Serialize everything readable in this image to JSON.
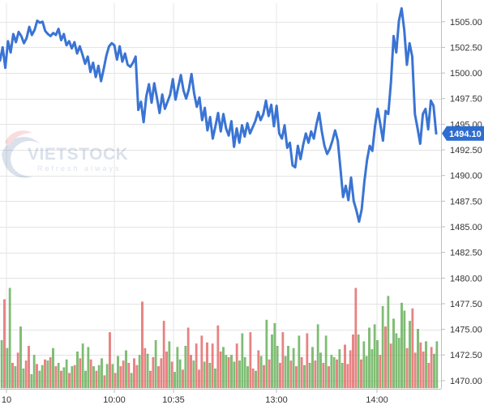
{
  "chart_data": {
    "type": "line",
    "title": "",
    "xlabel": "",
    "ylabel": "",
    "grid": true,
    "x_tick_labels": [
      "10",
      "10:00",
      "10:35",
      "13:00",
      "14:00"
    ],
    "y_ticks": [
      1505.0,
      1502.5,
      1500.0,
      1497.5,
      1495.0,
      1492.5,
      1490.0,
      1487.5,
      1485.0,
      1482.5,
      1480.0,
      1477.5,
      1475.0,
      1472.5,
      1470.0
    ],
    "y_tick_labels": [
      "1505.00",
      "1502.50",
      "1500.00",
      "1497.50",
      "1495.00",
      "1492.50",
      "1490.00",
      "1487.50",
      "1485.00",
      "1482.50",
      "1480.00",
      "1477.50",
      "1475.00",
      "1472.50",
      "1470.00"
    ],
    "ylim": [
      1469.2,
      1506.8
    ],
    "last_price": "1494.10",
    "price_series": [
      1501.2,
      1502.5,
      1500.5,
      1503.1,
      1502.0,
      1503.8,
      1503.0,
      1504.0,
      1503.6,
      1502.9,
      1503.4,
      1504.5,
      1503.7,
      1504.2,
      1505.1,
      1504.9,
      1505.0,
      1504.1,
      1503.8,
      1503.6,
      1503.9,
      1503.7,
      1504.3,
      1503.2,
      1503.8,
      1502.7,
      1503.1,
      1502.4,
      1503.0,
      1501.9,
      1502.6,
      1501.8,
      1500.9,
      1501.6,
      1500.1,
      1501.0,
      1499.6,
      1500.7,
      1499.2,
      1500.4,
      1501.7,
      1502.6,
      1502.9,
      1502.7,
      1501.3,
      1502.6,
      1501.1,
      1501.9,
      1500.8,
      1500.6,
      1501.0,
      1501.6,
      1496.4,
      1497.2,
      1495.2,
      1497.7,
      1498.9,
      1497.1,
      1499.0,
      1497.6,
      1496.1,
      1497.9,
      1496.5,
      1497.2,
      1497.9,
      1499.4,
      1497.4,
      1498.6,
      1499.8,
      1498.3,
      1497.5,
      1498.4,
      1499.9,
      1498.0,
      1496.7,
      1497.6,
      1495.4,
      1496.6,
      1494.4,
      1495.7,
      1493.6,
      1494.8,
      1496.1,
      1494.3,
      1496.0,
      1494.6,
      1493.9,
      1495.3,
      1492.8,
      1494.6,
      1493.2,
      1494.9,
      1493.8,
      1495.1,
      1494.1,
      1494.7,
      1495.3,
      1496.2,
      1495.4,
      1496.0,
      1497.3,
      1495.8,
      1496.9,
      1494.8,
      1496.8,
      1494.1,
      1493.6,
      1494.9,
      1492.7,
      1493.2,
      1491.0,
      1490.8,
      1492.9,
      1491.6,
      1493.0,
      1494.1,
      1493.2,
      1494.3,
      1493.6,
      1495.0,
      1496.1,
      1494.3,
      1492.9,
      1492.1,
      1492.6,
      1493.4,
      1494.4,
      1493.4,
      1490.7,
      1487.9,
      1489.0,
      1487.6,
      1489.8,
      1487.5,
      1486.6,
      1485.5,
      1486.7,
      1489.4,
      1491.5,
      1492.9,
      1492.4,
      1494.8,
      1496.5,
      1495.0,
      1493.4,
      1496.3,
      1496.0,
      1499.1,
      1503.6,
      1502.0,
      1505.1,
      1506.3,
      1504.2,
      1500.8,
      1502.9,
      1501.6,
      1496.0,
      1494.6,
      1493.1,
      1496.0,
      1496.5,
      1494.5,
      1497.3,
      1496.8,
      1494.1
    ],
    "volume_series": {
      "colors": {
        "up": "#67b05a",
        "down": "#e36a6a",
        "line": "#3a74d4"
      },
      "bars": [
        {
          "v": 0.42,
          "c": "up"
        },
        {
          "v": 0.78,
          "c": "down"
        },
        {
          "v": 0.35,
          "c": "up"
        },
        {
          "v": 0.88,
          "c": "up"
        },
        {
          "v": 0.22,
          "c": "down"
        },
        {
          "v": 0.19,
          "c": "up"
        },
        {
          "v": 0.31,
          "c": "down"
        },
        {
          "v": 0.54,
          "c": "up"
        },
        {
          "v": 0.17,
          "c": "up"
        },
        {
          "v": 0.24,
          "c": "down"
        },
        {
          "v": 0.37,
          "c": "down"
        },
        {
          "v": 0.12,
          "c": "up"
        },
        {
          "v": 0.29,
          "c": "up"
        },
        {
          "v": 0.21,
          "c": "down"
        },
        {
          "v": 0.15,
          "c": "up"
        },
        {
          "v": 0.2,
          "c": "up"
        },
        {
          "v": 0.25,
          "c": "down"
        },
        {
          "v": 0.24,
          "c": "up"
        },
        {
          "v": 0.27,
          "c": "down"
        },
        {
          "v": 0.35,
          "c": "up"
        },
        {
          "v": 0.19,
          "c": "down"
        },
        {
          "v": 0.22,
          "c": "up"
        },
        {
          "v": 0.15,
          "c": "down"
        },
        {
          "v": 0.18,
          "c": "up"
        },
        {
          "v": 0.25,
          "c": "up"
        },
        {
          "v": 0.13,
          "c": "down"
        },
        {
          "v": 0.19,
          "c": "up"
        },
        {
          "v": 0.2,
          "c": "down"
        },
        {
          "v": 0.32,
          "c": "up"
        },
        {
          "v": 0.26,
          "c": "down"
        },
        {
          "v": 0.39,
          "c": "up"
        },
        {
          "v": 0.15,
          "c": "up"
        },
        {
          "v": 0.36,
          "c": "up"
        },
        {
          "v": 0.25,
          "c": "down"
        },
        {
          "v": 0.19,
          "c": "up"
        },
        {
          "v": 0.15,
          "c": "down"
        },
        {
          "v": 0.2,
          "c": "up"
        },
        {
          "v": 0.26,
          "c": "up"
        },
        {
          "v": 0.11,
          "c": "down"
        },
        {
          "v": 0.21,
          "c": "up"
        },
        {
          "v": 0.49,
          "c": "down"
        },
        {
          "v": 0.21,
          "c": "up"
        },
        {
          "v": 0.13,
          "c": "down"
        },
        {
          "v": 0.28,
          "c": "up"
        },
        {
          "v": 0.19,
          "c": "down"
        },
        {
          "v": 0.24,
          "c": "down"
        },
        {
          "v": 0.33,
          "c": "up"
        },
        {
          "v": 0.22,
          "c": "down"
        },
        {
          "v": 0.13,
          "c": "up"
        },
        {
          "v": 0.26,
          "c": "down"
        },
        {
          "v": 0.2,
          "c": "down"
        },
        {
          "v": 0.29,
          "c": "up"
        },
        {
          "v": 0.76,
          "c": "down"
        },
        {
          "v": 0.35,
          "c": "down"
        },
        {
          "v": 0.3,
          "c": "up"
        },
        {
          "v": 0.15,
          "c": "down"
        },
        {
          "v": 0.27,
          "c": "down"
        },
        {
          "v": 0.42,
          "c": "up"
        },
        {
          "v": 0.19,
          "c": "down"
        },
        {
          "v": 0.26,
          "c": "down"
        },
        {
          "v": 0.59,
          "c": "down"
        },
        {
          "v": 0.32,
          "c": "down"
        },
        {
          "v": 0.41,
          "c": "up"
        },
        {
          "v": 0.23,
          "c": "down"
        },
        {
          "v": 0.14,
          "c": "up"
        },
        {
          "v": 0.36,
          "c": "up"
        },
        {
          "v": 0.25,
          "c": "up"
        },
        {
          "v": 0.16,
          "c": "down"
        },
        {
          "v": 0.37,
          "c": "up"
        },
        {
          "v": 0.53,
          "c": "down"
        },
        {
          "v": 0.29,
          "c": "down"
        },
        {
          "v": 0.24,
          "c": "up"
        },
        {
          "v": 0.39,
          "c": "down"
        },
        {
          "v": 0.16,
          "c": "down"
        },
        {
          "v": 0.46,
          "c": "down"
        },
        {
          "v": 0.23,
          "c": "up"
        },
        {
          "v": 0.4,
          "c": "down"
        },
        {
          "v": 0.22,
          "c": "up"
        },
        {
          "v": 0.39,
          "c": "down"
        },
        {
          "v": 0.17,
          "c": "up"
        },
        {
          "v": 0.55,
          "c": "down"
        },
        {
          "v": 0.32,
          "c": "down"
        },
        {
          "v": 0.36,
          "c": "up"
        },
        {
          "v": 0.29,
          "c": "up"
        },
        {
          "v": 0.27,
          "c": "down"
        },
        {
          "v": 0.29,
          "c": "up"
        },
        {
          "v": 0.23,
          "c": "up"
        },
        {
          "v": 0.39,
          "c": "down"
        },
        {
          "v": 0.24,
          "c": "up"
        },
        {
          "v": 0.48,
          "c": "up"
        },
        {
          "v": 0.27,
          "c": "up"
        },
        {
          "v": 0.19,
          "c": "up"
        },
        {
          "v": 0.49,
          "c": "down"
        },
        {
          "v": 0.17,
          "c": "down"
        },
        {
          "v": 0.15,
          "c": "up"
        },
        {
          "v": 0.33,
          "c": "down"
        },
        {
          "v": 0.28,
          "c": "up"
        },
        {
          "v": 0.2,
          "c": "down"
        },
        {
          "v": 0.6,
          "c": "up"
        },
        {
          "v": 0.25,
          "c": "down"
        },
        {
          "v": 0.47,
          "c": "up"
        },
        {
          "v": 0.57,
          "c": "up"
        },
        {
          "v": 0.37,
          "c": "up"
        },
        {
          "v": 0.22,
          "c": "down"
        },
        {
          "v": 0.49,
          "c": "down"
        },
        {
          "v": 0.28,
          "c": "up"
        },
        {
          "v": 0.37,
          "c": "up"
        },
        {
          "v": 0.24,
          "c": "down"
        },
        {
          "v": 0.35,
          "c": "up"
        },
        {
          "v": 0.19,
          "c": "down"
        },
        {
          "v": 0.46,
          "c": "up"
        },
        {
          "v": 0.27,
          "c": "down"
        },
        {
          "v": 0.2,
          "c": "up"
        },
        {
          "v": 0.48,
          "c": "down"
        },
        {
          "v": 0.22,
          "c": "up"
        },
        {
          "v": 0.36,
          "c": "up"
        },
        {
          "v": 0.24,
          "c": "down"
        },
        {
          "v": 0.56,
          "c": "up"
        },
        {
          "v": 0.31,
          "c": "up"
        },
        {
          "v": 0.22,
          "c": "down"
        },
        {
          "v": 0.46,
          "c": "up"
        },
        {
          "v": 0.19,
          "c": "down"
        },
        {
          "v": 0.29,
          "c": "up"
        },
        {
          "v": 0.27,
          "c": "up"
        },
        {
          "v": 0.25,
          "c": "down"
        },
        {
          "v": 0.34,
          "c": "up"
        },
        {
          "v": 0.22,
          "c": "up"
        },
        {
          "v": 0.38,
          "c": "down"
        },
        {
          "v": 0.21,
          "c": "down"
        },
        {
          "v": 0.33,
          "c": "down"
        },
        {
          "v": 0.47,
          "c": "down"
        },
        {
          "v": 0.88,
          "c": "down"
        },
        {
          "v": 0.47,
          "c": "up"
        },
        {
          "v": 0.25,
          "c": "down"
        },
        {
          "v": 0.41,
          "c": "up"
        },
        {
          "v": 0.28,
          "c": "up"
        },
        {
          "v": 0.53,
          "c": "up"
        },
        {
          "v": 0.34,
          "c": "up"
        },
        {
          "v": 0.56,
          "c": "up"
        },
        {
          "v": 0.42,
          "c": "up"
        },
        {
          "v": 0.29,
          "c": "down"
        },
        {
          "v": 0.72,
          "c": "up"
        },
        {
          "v": 0.54,
          "c": "down"
        },
        {
          "v": 0.81,
          "c": "up"
        },
        {
          "v": 0.39,
          "c": "down"
        },
        {
          "v": 0.61,
          "c": "up"
        },
        {
          "v": 0.48,
          "c": "up"
        },
        {
          "v": 0.44,
          "c": "up"
        },
        {
          "v": 0.75,
          "c": "up"
        },
        {
          "v": 0.68,
          "c": "up"
        },
        {
          "v": 0.35,
          "c": "down"
        },
        {
          "v": 0.59,
          "c": "up"
        },
        {
          "v": 0.7,
          "c": "down"
        },
        {
          "v": 0.31,
          "c": "down"
        },
        {
          "v": 0.52,
          "c": "up"
        },
        {
          "v": 0.4,
          "c": "down"
        },
        {
          "v": 0.32,
          "c": "down"
        },
        {
          "v": 0.41,
          "c": "up"
        },
        {
          "v": 0.22,
          "c": "down"
        },
        {
          "v": 0.36,
          "c": "down"
        },
        {
          "v": 0.3,
          "c": "up"
        },
        {
          "v": 0.41,
          "c": "up"
        }
      ]
    }
  },
  "watermark": {
    "brand": "VIETSTOCK",
    "tagline": "Refresh always"
  },
  "colors": {
    "line": "#3a74d4",
    "badge": "#2e6dd0",
    "grid": "#e4e4e4",
    "axis": "#bdbdbd",
    "vol_up": "#67b05a",
    "vol_down": "#e36a6a"
  }
}
